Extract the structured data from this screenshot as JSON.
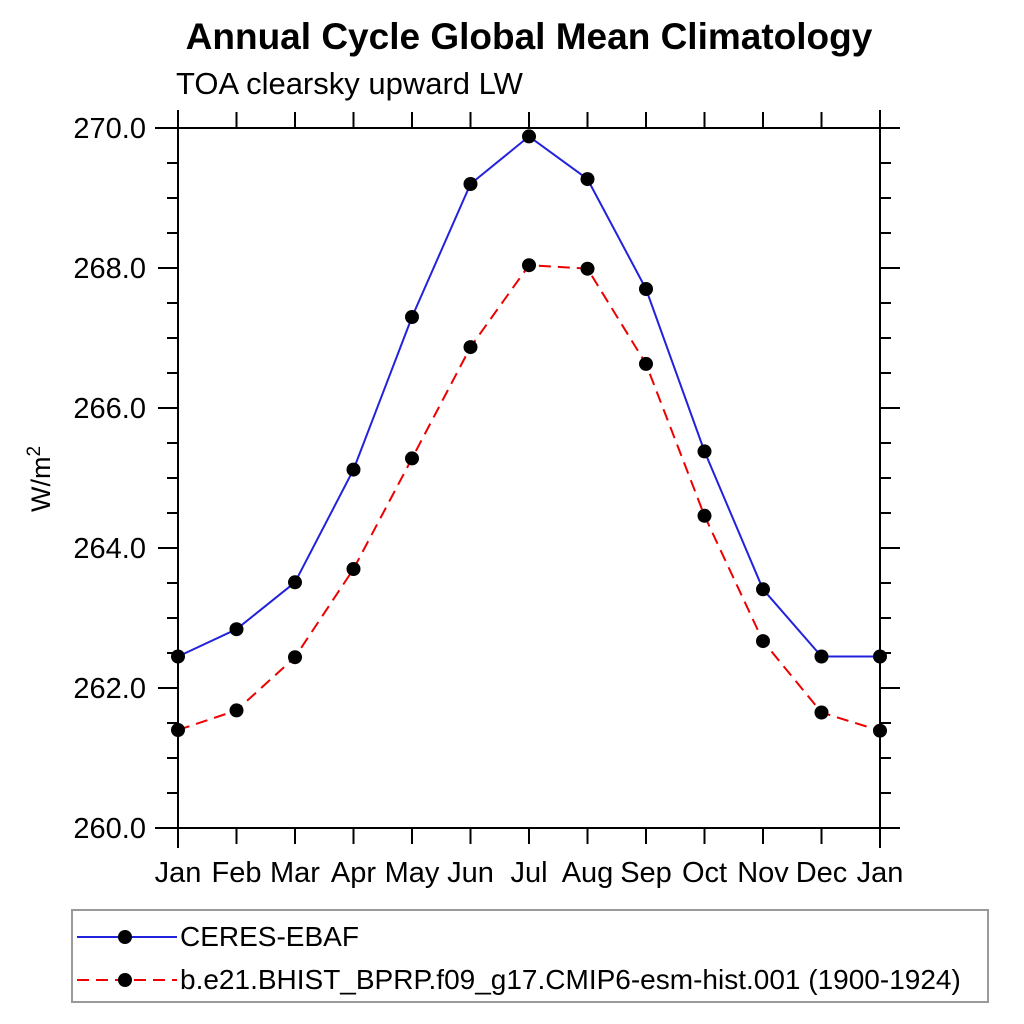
{
  "chart_data": {
    "type": "line",
    "title": "Annual Cycle Global Mean Climatology",
    "subtitle": "TOA clearsky upward LW",
    "ylabel": "W/m",
    "ylabel_sup": "2",
    "ylim": [
      260.0,
      270.0
    ],
    "ytick_major_step": 2.0,
    "ytick_minor_step": 0.5,
    "ytick_labels": [
      "260.0",
      "262.0",
      "264.0",
      "266.0",
      "268.0",
      "270.0"
    ],
    "grid": false,
    "axis_color": "#000000",
    "marker_color": "#000000",
    "categories": [
      "Jan",
      "Feb",
      "Mar",
      "Apr",
      "May",
      "Jun",
      "Jul",
      "Aug",
      "Sep",
      "Oct",
      "Nov",
      "Dec",
      "Jan"
    ],
    "series": [
      {
        "name": "CERES-EBAF",
        "color": "#2222dd",
        "line_style": "solid",
        "marker": "filled-circle",
        "values": [
          262.45,
          262.84,
          263.51,
          265.12,
          267.3,
          269.2,
          269.88,
          269.27,
          267.7,
          265.38,
          263.41,
          262.45,
          262.45
        ]
      },
      {
        "name": "b.e21.BHIST_BPRP.f09_g17.CMIP6-esm-hist.001 (1900-1924)",
        "color": "#ee0000",
        "line_style": "dashed",
        "marker": "filled-circle",
        "values": [
          261.4,
          261.68,
          262.44,
          263.7,
          265.28,
          266.87,
          268.04,
          267.99,
          266.63,
          264.46,
          262.67,
          261.65,
          261.39
        ]
      }
    ],
    "legend_position": "bottom-left"
  }
}
